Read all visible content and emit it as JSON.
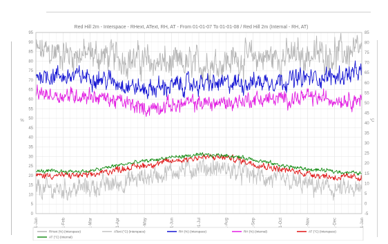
{
  "panel_number": "1",
  "chart_data": {
    "type": "line",
    "title": "Red Hill 2m - Interspace - RHext, AText, RH, AT - From 01-01-07 To 01-01-08 / Red Hill 2m (Internal - RH, AT)",
    "ylabel_left": "%",
    "ylabel_right": "°C",
    "ylim_left": [
      0,
      95
    ],
    "ylim_right": [
      -5,
      85
    ],
    "yticks_left": [
      "0",
      "5",
      "10",
      "15",
      "20",
      "25",
      "30",
      "35",
      "40",
      "45",
      "50",
      "55",
      "60",
      "65",
      "70",
      "75",
      "80",
      "85",
      "90",
      "95"
    ],
    "yticks_right": [
      "-5",
      "0",
      "5",
      "10",
      "15",
      "20",
      "25",
      "30",
      "35",
      "40",
      "45",
      "50",
      "55",
      "60",
      "65",
      "70",
      "75",
      "80",
      "85"
    ],
    "x_ticks": [
      "01-Jan",
      "01-Feb",
      "01-Mar",
      "01-Apr",
      "01-May",
      "01-Jun",
      "01-Jul",
      "01-Aug",
      "01-Sep",
      "01-Oct",
      "01-Nov",
      "01-Dec",
      "01-Jan"
    ],
    "grid": true,
    "legend_position": "bottom",
    "series": [
      {
        "name": "RHext (%) (Interspace)",
        "axis": "left",
        "color": "#b4b4b4",
        "values": [
          85,
          84,
          83,
          82,
          80,
          78,
          78,
          80,
          82,
          82,
          83,
          84,
          85
        ],
        "noise": 10
      },
      {
        "name": "AText (°C) (Interspace)",
        "axis": "right",
        "color": "#c2c2c2",
        "values": [
          7,
          7,
          8,
          10,
          13,
          16,
          18,
          17,
          14,
          11,
          9,
          7,
          6
        ],
        "noise": 6
      },
      {
        "name": "RH (%) (Interspace)",
        "axis": "left",
        "color": "#1414d2",
        "values": [
          73,
          72,
          72,
          69,
          65,
          67,
          68,
          68,
          69,
          70,
          71,
          72,
          74
        ],
        "noise": 6
      },
      {
        "name": "RH (%) (Internal)",
        "axis": "left",
        "color": "#e21ee2",
        "values": [
          63,
          62,
          62,
          59,
          55,
          57,
          58,
          58,
          60,
          60,
          61,
          60,
          60
        ],
        "noise": 5
      },
      {
        "name": "AT (°C) (Interspace)",
        "axis": "right",
        "color": "#e01414",
        "values": [
          14,
          14,
          14,
          17,
          19,
          21,
          23,
          23,
          20,
          17,
          15,
          13,
          13
        ],
        "noise": 2
      },
      {
        "name": "AT (°C) (Internal)",
        "axis": "right",
        "color": "#1a8f1a",
        "values": [
          16,
          16,
          16,
          19,
          21,
          23,
          24,
          24,
          22,
          19,
          17,
          16,
          15
        ],
        "noise": 1.2
      }
    ]
  }
}
